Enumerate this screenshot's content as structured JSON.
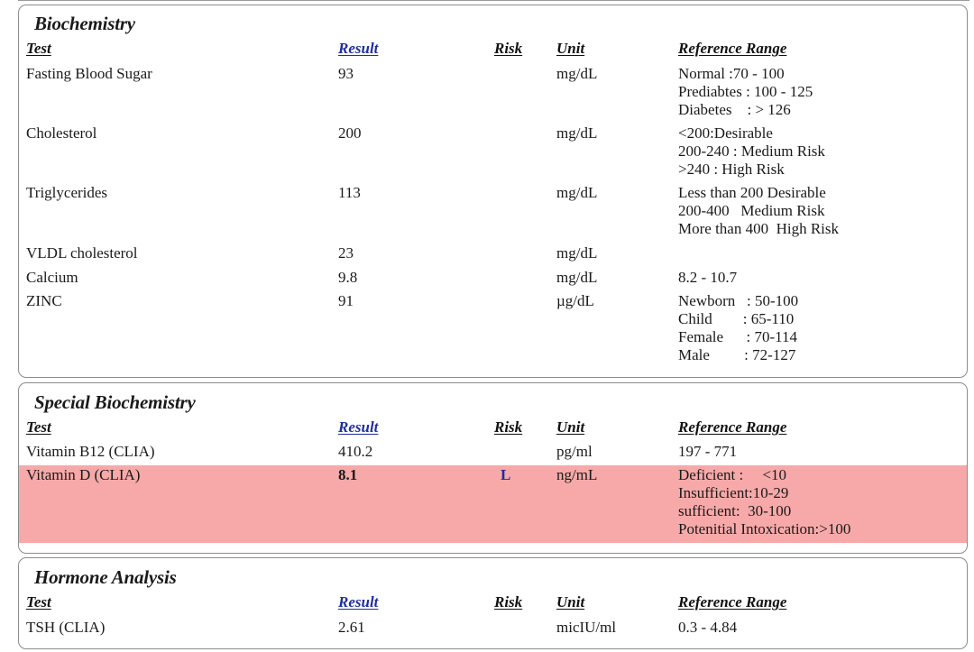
{
  "headers": {
    "test": "Test",
    "result": "Result",
    "risk": "Risk",
    "unit": "Unit",
    "reference": "Reference Range"
  },
  "sections": {
    "biochemistry": {
      "title": "Biochemistry",
      "rows": [
        {
          "test": "Fasting Blood Sugar",
          "result": "93",
          "risk": "",
          "unit": "mg/dL",
          "ref": [
            "Normal :70 - 100",
            "Prediabtes : 100 - 125",
            "Diabetes    : > 126"
          ]
        },
        {
          "test": "Cholesterol",
          "result": "200",
          "risk": "",
          "unit": "mg/dL",
          "ref": [
            "<200:Desirable",
            "200-240 : Medium Risk",
            ">240 : High Risk"
          ]
        },
        {
          "test": "Triglycerides",
          "result": "113",
          "risk": "",
          "unit": "mg/dL",
          "ref": [
            "Less than 200 Desirable",
            "200-400   Medium Risk",
            "More than 400  High Risk"
          ]
        },
        {
          "test": "VLDL cholesterol",
          "result": "23",
          "risk": "",
          "unit": "mg/dL",
          "ref": []
        },
        {
          "test": "Calcium",
          "result": "9.8",
          "risk": "",
          "unit": "mg/dL",
          "ref": [
            "8.2 - 10.7"
          ]
        },
        {
          "test": "ZINC",
          "result": "91",
          "risk": "",
          "unit": "µg/dL",
          "ref": [
            "Newborn   : 50-100",
            "Child        : 65-110",
            "Female      : 70-114",
            "Male         : 72-127"
          ]
        }
      ]
    },
    "special": {
      "title": "Special Biochemistry",
      "rows": [
        {
          "test": "Vitamin B12 (CLIA)",
          "result": "410.2",
          "risk": "",
          "unit": "pg/ml",
          "ref": [
            "197 - 771"
          ]
        },
        {
          "test": "Vitamin D (CLIA)",
          "result": "8.1",
          "risk": "L",
          "unit": "ng/mL",
          "ref": [
            "Deficient :     <10",
            "Insufficient:10-29",
            "sufficient:  30-100",
            "Potenitial Intoxication:>100"
          ],
          "flagged": true
        }
      ]
    },
    "hormone": {
      "title": "Hormone Analysis",
      "rows": [
        {
          "test": "TSH (CLIA)",
          "result": "2.61",
          "risk": "",
          "unit": "micIU/ml",
          "ref": [
            "0.3 - 4.84"
          ]
        }
      ]
    }
  },
  "colors": {
    "flag_row_background": "#f7a9a9",
    "header_blue": "#1f2f9e"
  }
}
